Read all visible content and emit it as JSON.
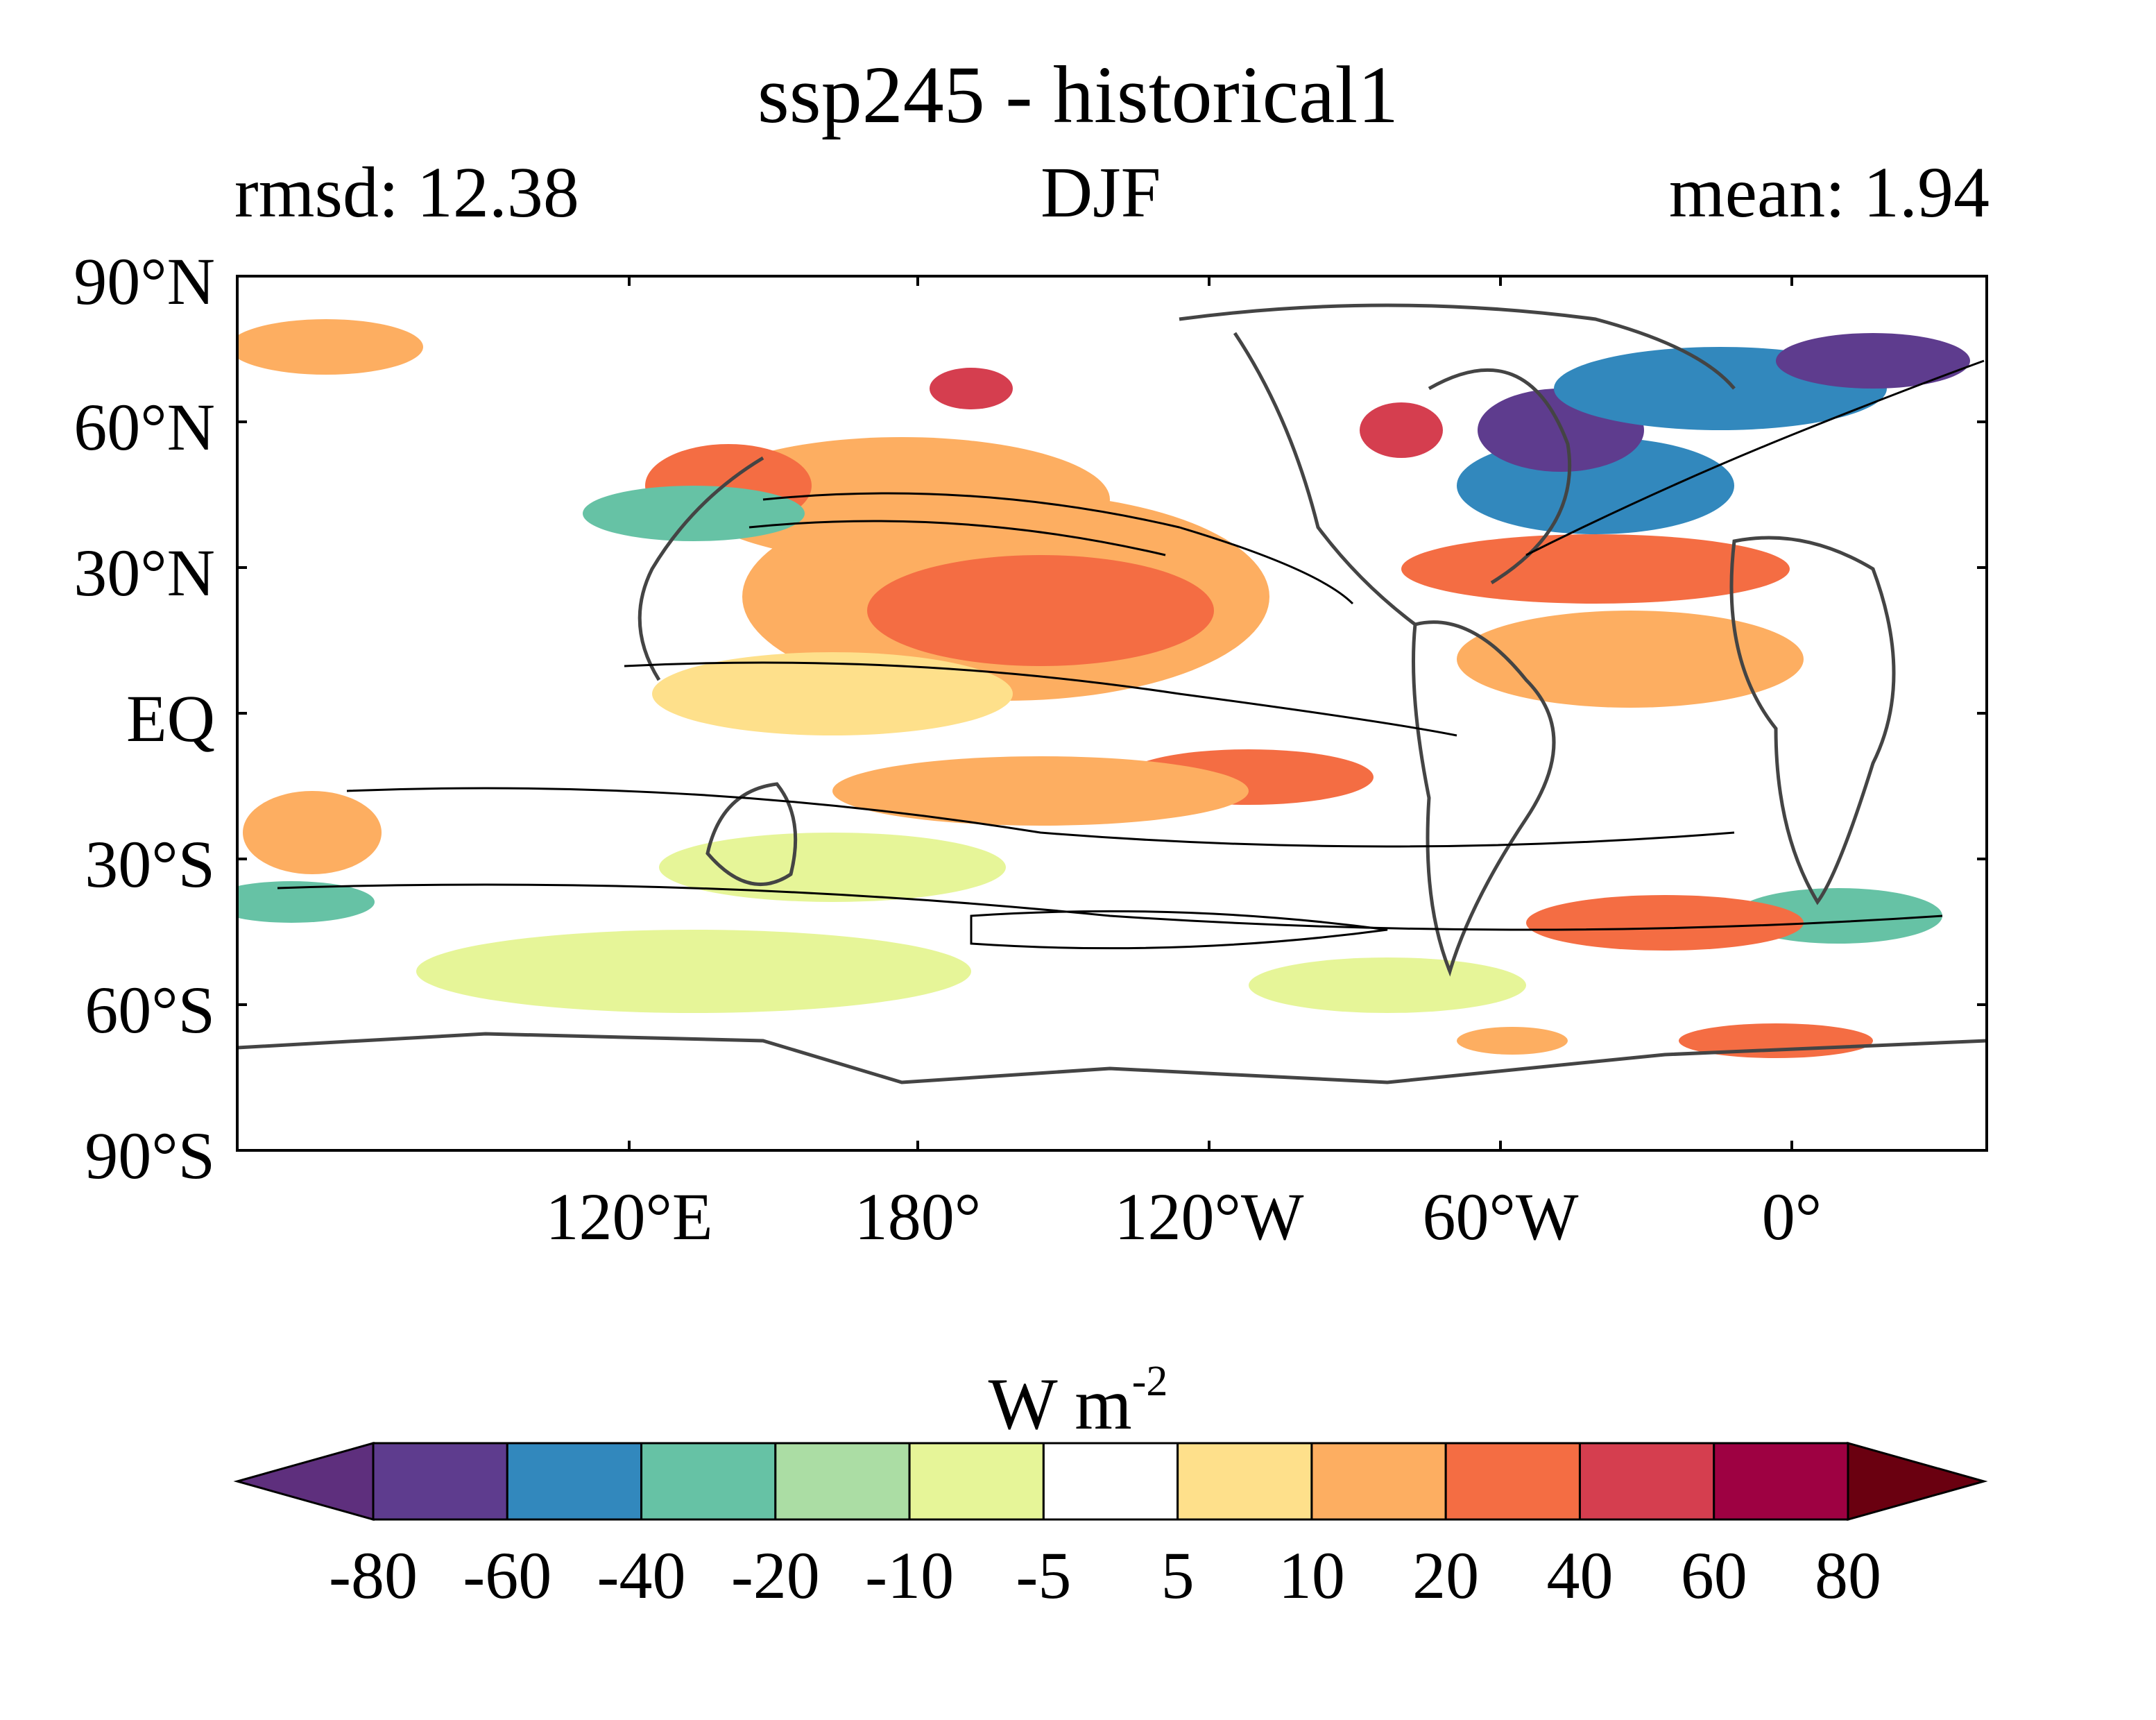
{
  "title": "ssp245 - historical1",
  "left_stat": "rmsd: 12.38",
  "season": "DJF",
  "right_stat": "mean: 1.94",
  "map": {
    "lat_tick_labels": [
      "90°N",
      "60°N",
      "30°N",
      "EQ",
      "30°S",
      "60°S",
      "90°S"
    ],
    "lon_tick_labels": [
      "120°E",
      "180°",
      "120°W",
      "60°W",
      "0°"
    ],
    "lat_range": [
      -90,
      90
    ]
  },
  "colorbar": {
    "unit_main": "W m",
    "unit_sup": "-2",
    "tick_labels": [
      "-80",
      "-60",
      "-40",
      "-20",
      "-10",
      "-5",
      "5",
      "10",
      "20",
      "40",
      "60",
      "80"
    ],
    "bin_colors": [
      "#5e3c8e",
      "#3288bd",
      "#66c2a5",
      "#abdda4",
      "#e6f598",
      "#ffffff",
      "#fee08b",
      "#fdae61",
      "#f46d43",
      "#d53e4f",
      "#9e0142"
    ],
    "under_color": "#5e2f7d",
    "over_color": "#6a0010",
    "extend": "both"
  },
  "colors": {
    "coast": "#444444",
    "contour": "#000000"
  }
}
